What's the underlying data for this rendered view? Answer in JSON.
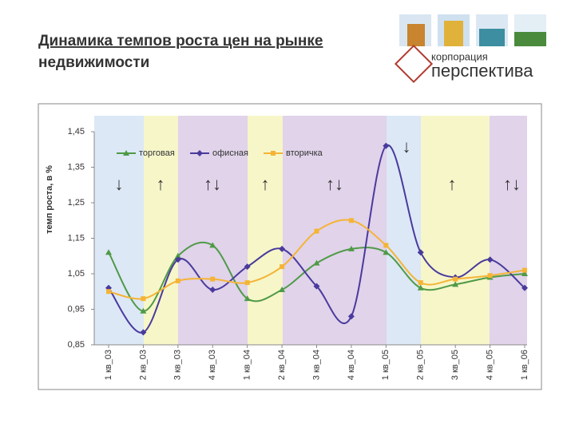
{
  "header": {
    "title_line1": "Динамика  темпов роста цен на рынке",
    "title_line2": "недвижимости"
  },
  "logo": {
    "small": "корпорация",
    "name": "перспектива"
  },
  "chart_data": {
    "type": "line",
    "y_label": "темп роста, в %",
    "categories": [
      "1 кв_03",
      "2 кв_03",
      "3 кв_03",
      "4 кв_03",
      "1 кв_04",
      "2 кв_04",
      "3 кв_04",
      "4 кв_04",
      "1 кв_05",
      "2 кв_05",
      "3 кв_05",
      "4 кв_05",
      "1 кв_06"
    ],
    "series": [
      {
        "name": "торговая",
        "color": "#4f9a46",
        "values": [
          1.11,
          0.945,
          1.1,
          1.13,
          0.98,
          1.005,
          1.08,
          1.12,
          1.11,
          1.01,
          1.02,
          1.04,
          1.05
        ]
      },
      {
        "name": "офисная",
        "color": "#4a3a9c",
        "values": [
          1.01,
          0.885,
          1.09,
          1.005,
          1.07,
          1.12,
          1.015,
          0.93,
          1.41,
          1.11,
          1.04,
          1.09,
          1.01
        ]
      },
      {
        "name": "вторичка",
        "color": "#f5b436",
        "values": [
          1.0,
          0.98,
          1.03,
          1.035,
          1.025,
          1.07,
          1.17,
          1.2,
          1.13,
          1.025,
          1.035,
          1.045,
          1.06
        ]
      }
    ],
    "ylim": [
      0.85,
      1.45
    ],
    "yticks": [
      {
        "value": 0.85,
        "label": "0,85"
      },
      {
        "value": 0.95,
        "label": "0,95"
      },
      {
        "value": 1.05,
        "label": "1,05"
      },
      {
        "value": 1.15,
        "label": "1,15"
      },
      {
        "value": 1.25,
        "label": "1,25"
      },
      {
        "value": 1.35,
        "label": "1,35"
      },
      {
        "value": 1.45,
        "label": "1,45"
      }
    ],
    "annotations": [
      "↓",
      "↑",
      "↑↓",
      "↑",
      "↑↓",
      "↓",
      "↑",
      "↑↓"
    ],
    "grid": false,
    "legend": "top"
  }
}
